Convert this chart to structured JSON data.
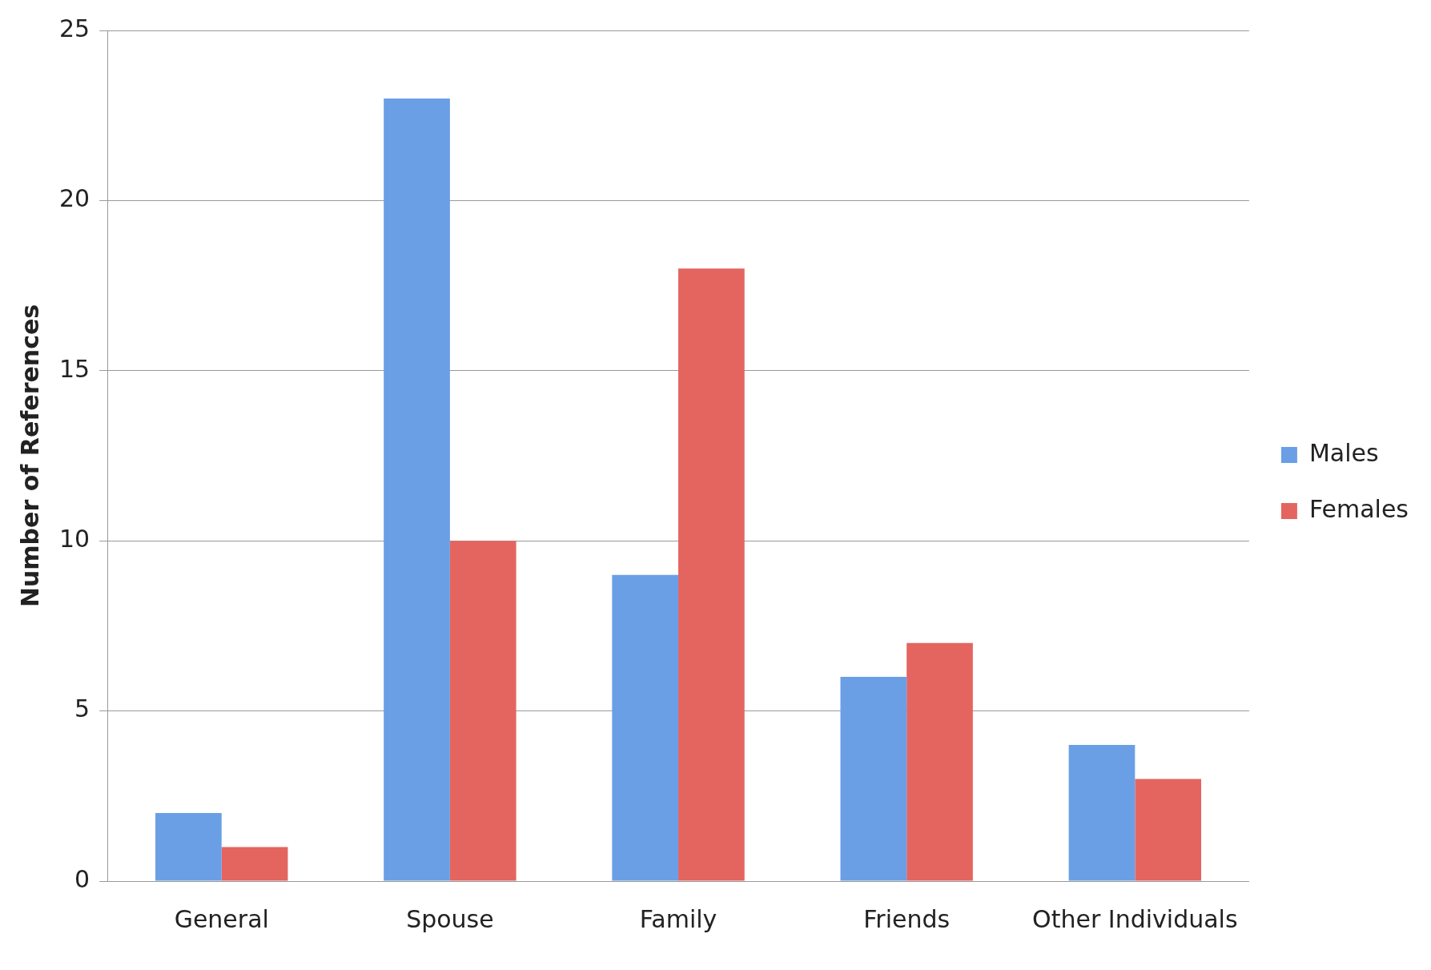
{
  "chart_data": {
    "type": "bar",
    "ylabel": "Number of References",
    "categories": [
      "General",
      "Spouse",
      "Family",
      "Friends",
      "Other Individuals"
    ],
    "series": [
      {
        "name": "Males",
        "color": "#6a9fe6",
        "values": [
          2,
          23,
          9,
          6,
          4
        ]
      },
      {
        "name": "Females",
        "color": "#e46560",
        "values": [
          1,
          10,
          18,
          7,
          3
        ]
      }
    ],
    "ylim": [
      0,
      25
    ],
    "yticks": [
      0,
      5,
      10,
      15,
      20,
      25
    ],
    "grid": "y",
    "legend": "right"
  }
}
